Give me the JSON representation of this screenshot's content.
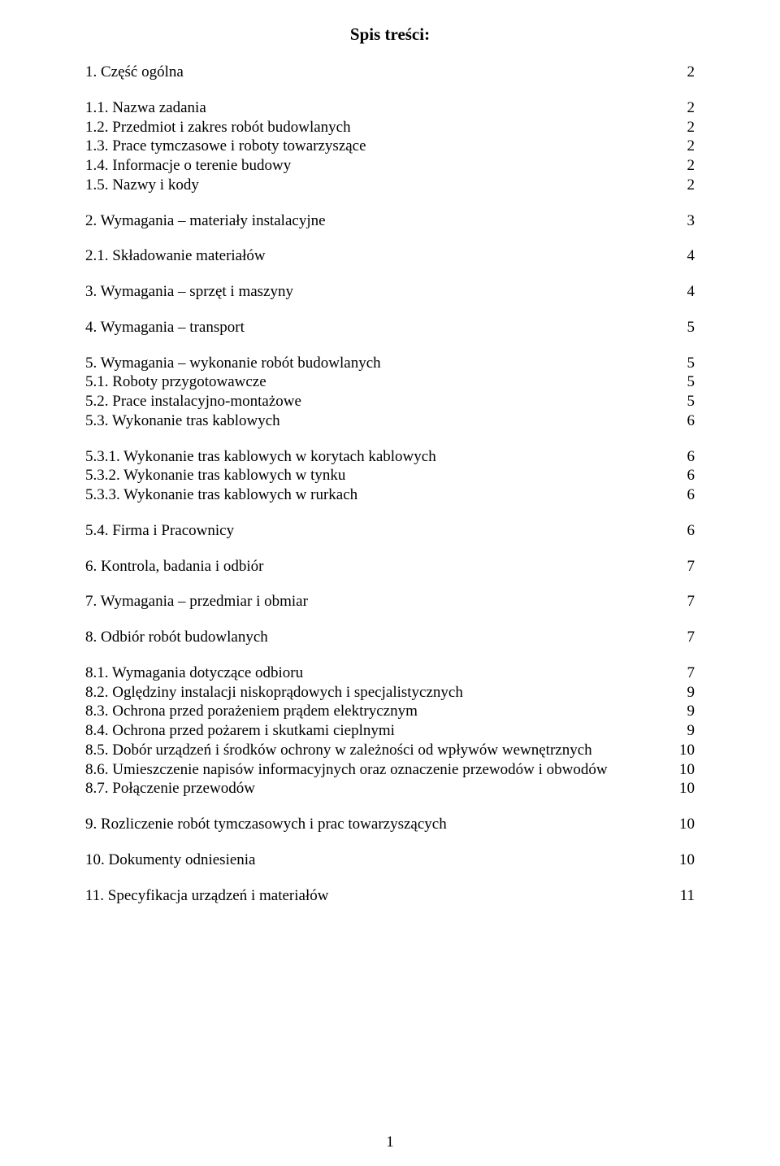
{
  "title": "Spis treści:",
  "pageNumber": "1",
  "fontSizePt": 14,
  "colors": {
    "text": "#000000",
    "background": "#ffffff"
  },
  "groups": [
    {
      "items": [
        {
          "label": "1. Część ogólna",
          "page": "2"
        }
      ]
    },
    {
      "items": [
        {
          "label": "1.1. Nazwa zadania",
          "page": "2"
        },
        {
          "label": "1.2. Przedmiot i zakres robót budowlanych",
          "page": "2"
        },
        {
          "label": "1.3. Prace tymczasowe i roboty towarzyszące",
          "page": "2"
        },
        {
          "label": "1.4. Informacje o terenie budowy",
          "page": "2"
        },
        {
          "label": "1.5. Nazwy i kody",
          "page": "2"
        }
      ]
    },
    {
      "items": [
        {
          "label": "2. Wymagania – materiały instalacyjne",
          "page": "3"
        }
      ]
    },
    {
      "items": [
        {
          "label": "2.1. Składowanie materiałów",
          "page": "4"
        }
      ]
    },
    {
      "items": [
        {
          "label": "3. Wymagania – sprzęt i maszyny",
          "page": "4"
        }
      ]
    },
    {
      "items": [
        {
          "label": "4. Wymagania – transport",
          "page": "5"
        }
      ]
    },
    {
      "items": [
        {
          "label": "5. Wymagania – wykonanie robót budowlanych",
          "page": "5"
        },
        {
          "label": "5.1. Roboty przygotowawcze",
          "page": "5"
        },
        {
          "label": "5.2. Prace instalacyjno-montażowe",
          "page": "5"
        },
        {
          "label": "5.3. Wykonanie tras kablowych",
          "page": "6"
        }
      ]
    },
    {
      "items": [
        {
          "label": "5.3.1. Wykonanie tras kablowych w korytach kablowych",
          "page": "6"
        },
        {
          "label": "5.3.2. Wykonanie tras kablowych w tynku",
          "page": "6"
        },
        {
          "label": "5.3.3. Wykonanie tras kablowych w rurkach",
          "page": "6"
        }
      ]
    },
    {
      "items": [
        {
          "label": "5.4. Firma i Pracownicy",
          "page": "6"
        }
      ]
    },
    {
      "items": [
        {
          "label": "6. Kontrola, badania i odbiór",
          "page": "7"
        }
      ]
    },
    {
      "items": [
        {
          "label": "7. Wymagania – przedmiar i obmiar",
          "page": "7"
        }
      ]
    },
    {
      "items": [
        {
          "label": "8. Odbiór robót budowlanych",
          "page": "7"
        }
      ]
    },
    {
      "items": [
        {
          "label": "8.1. Wymagania dotyczące odbioru",
          "page": "7"
        },
        {
          "label": "8.2. Oględziny instalacji niskoprądowych i specjalistycznych",
          "page": "9"
        },
        {
          "label": "8.3. Ochrona przed porażeniem prądem elektrycznym",
          "page": "9"
        },
        {
          "label": "8.4. Ochrona przed pożarem i skutkami cieplnymi",
          "page": "9"
        },
        {
          "label": "8.5. Dobór urządzeń i środków ochrony w zależności od wpływów wewnętrznych",
          "page": "10"
        },
        {
          "label": "8.6. Umieszczenie napisów informacyjnych oraz oznaczenie przewodów i obwodów",
          "page": "10"
        },
        {
          "label": "8.7. Połączenie przewodów",
          "page": "10"
        }
      ]
    },
    {
      "items": [
        {
          "label": "9. Rozliczenie robót tymczasowych i prac towarzyszących",
          "page": "10"
        }
      ]
    },
    {
      "items": [
        {
          "label": "10. Dokumenty odniesienia",
          "page": "10"
        }
      ]
    },
    {
      "items": [
        {
          "label": "11. Specyfikacja urządzeń i materiałów",
          "page": "11"
        }
      ]
    }
  ]
}
